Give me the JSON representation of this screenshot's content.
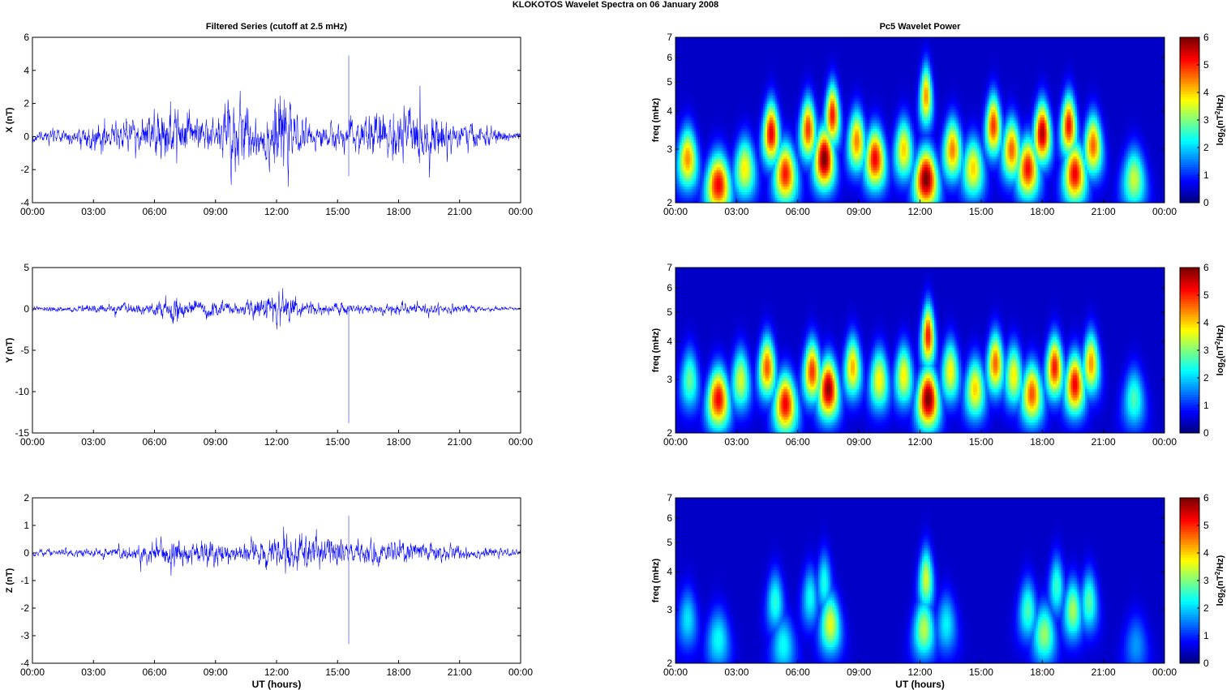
{
  "figure_title": "KLOKOTOS Wavelet Spectra on 06 January   2008",
  "left_column_title": "Filtered Series (cutoff at 2.5 mHz)",
  "right_column_title": "Pc5 Wavelet Power",
  "xlabel": "UT (hours)",
  "time_ticks": [
    "00:00",
    "03:00",
    "06:00",
    "09:00",
    "12:00",
    "15:00",
    "18:00",
    "21:00",
    "00:00"
  ],
  "freq_ylabel": "freq (mHz)",
  "freq_ticks": [
    "2",
    "3",
    "4",
    "5",
    "6",
    "7"
  ],
  "colorbar_label": "log2(nT2/Hz)",
  "colorbar_ticks": [
    "0",
    "1",
    "2",
    "3",
    "4",
    "5",
    "6"
  ],
  "chart_data": [
    {
      "type": "line",
      "component": "X",
      "ylabel": "X (nT)",
      "ylim": [
        -4,
        6
      ],
      "yticks": [
        -4,
        -2,
        0,
        2,
        4,
        6
      ],
      "x_range_hours": [
        0,
        24
      ],
      "line_color": "#0000ff",
      "envelope_nT_at_hour": [
        [
          0,
          0.2
        ],
        [
          2,
          0.25
        ],
        [
          3,
          0.5
        ],
        [
          5,
          0.6
        ],
        [
          7,
          1.0
        ],
        [
          8,
          0.8
        ],
        [
          9,
          0.5
        ],
        [
          9.7,
          1.6
        ],
        [
          11,
          0.7
        ],
        [
          12.3,
          1.5
        ],
        [
          13,
          0.6
        ],
        [
          14,
          0.4
        ],
        [
          15.5,
          0.5
        ],
        [
          16.5,
          0.8
        ],
        [
          19,
          1.0
        ],
        [
          21,
          0.5
        ],
        [
          24,
          0.15
        ]
      ],
      "spikes": [
        {
          "hour": 15.55,
          "max": 4.9,
          "min": -2.4
        }
      ]
    },
    {
      "type": "line",
      "component": "Y",
      "ylabel": "Y (nT)",
      "ylim": [
        -15,
        5
      ],
      "yticks": [
        -15,
        -10,
        -5,
        0,
        5
      ],
      "x_range_hours": [
        0,
        24
      ],
      "line_color": "#0000ff",
      "envelope_nT_at_hour": [
        [
          0,
          0.15
        ],
        [
          3,
          0.3
        ],
        [
          6,
          0.4
        ],
        [
          7,
          1.0
        ],
        [
          8,
          0.6
        ],
        [
          10,
          0.4
        ],
        [
          12.5,
          1.2
        ],
        [
          13.5,
          0.5
        ],
        [
          16,
          0.4
        ],
        [
          19,
          0.4
        ],
        [
          21,
          0.3
        ],
        [
          24,
          0.1
        ]
      ],
      "spikes": [
        {
          "hour": 15.55,
          "max": 0.3,
          "min": -13.8
        }
      ]
    },
    {
      "type": "line",
      "component": "Z",
      "ylabel": "Z (nT)",
      "ylim": [
        -4,
        2
      ],
      "yticks": [
        -4,
        -3,
        -2,
        -1,
        0,
        1,
        2
      ],
      "x_range_hours": [
        0,
        24
      ],
      "line_color": "#0000ff",
      "envelope_nT_at_hour": [
        [
          0,
          0.06
        ],
        [
          3,
          0.1
        ],
        [
          5,
          0.2
        ],
        [
          7,
          0.3
        ],
        [
          8.5,
          0.3
        ],
        [
          10,
          0.2
        ],
        [
          12.5,
          0.35
        ],
        [
          13.2,
          0.45
        ],
        [
          14.5,
          0.3
        ],
        [
          16,
          0.25
        ],
        [
          19,
          0.25
        ],
        [
          21,
          0.15
        ],
        [
          24,
          0.05
        ]
      ],
      "spikes": [
        {
          "hour": 15.55,
          "max": 1.35,
          "min": -3.3
        }
      ]
    },
    {
      "type": "heatmap",
      "component": "X",
      "ylabel": "freq (mHz)",
      "ylim_mHz": [
        2,
        7
      ],
      "y_scale": "log",
      "x_range_hours": [
        0,
        24
      ],
      "clim": [
        0,
        6
      ],
      "colormap": "jet",
      "blobs": [
        {
          "t": 0.6,
          "f": 2.8,
          "p": 4.2
        },
        {
          "t": 2.1,
          "f": 2.3,
          "p": 5.2
        },
        {
          "t": 3.4,
          "f": 2.6,
          "p": 3.6
        },
        {
          "t": 4.7,
          "f": 3.4,
          "p": 5.3
        },
        {
          "t": 5.4,
          "f": 2.5,
          "p": 5.0
        },
        {
          "t": 6.5,
          "f": 3.5,
          "p": 4.8
        },
        {
          "t": 7.3,
          "f": 2.8,
          "p": 6.0
        },
        {
          "t": 7.7,
          "f": 3.9,
          "p": 5.0
        },
        {
          "t": 8.9,
          "f": 3.2,
          "p": 4.3
        },
        {
          "t": 9.8,
          "f": 2.8,
          "p": 5.2
        },
        {
          "t": 11.2,
          "f": 3.0,
          "p": 3.8
        },
        {
          "t": 12.3,
          "f": 2.4,
          "p": 6.0
        },
        {
          "t": 12.3,
          "f": 4.5,
          "p": 4.2
        },
        {
          "t": 13.6,
          "f": 3.0,
          "p": 4.3
        },
        {
          "t": 14.6,
          "f": 2.6,
          "p": 3.8
        },
        {
          "t": 15.6,
          "f": 3.6,
          "p": 4.8
        },
        {
          "t": 16.5,
          "f": 3.0,
          "p": 4.5
        },
        {
          "t": 17.3,
          "f": 2.6,
          "p": 5.1
        },
        {
          "t": 18.0,
          "f": 3.4,
          "p": 5.6
        },
        {
          "t": 19.3,
          "f": 3.6,
          "p": 5.1
        },
        {
          "t": 19.6,
          "f": 2.5,
          "p": 5.2
        },
        {
          "t": 20.5,
          "f": 3.1,
          "p": 4.5
        },
        {
          "t": 22.5,
          "f": 2.4,
          "p": 3.2
        }
      ]
    },
    {
      "type": "heatmap",
      "component": "Y",
      "ylabel": "freq (mHz)",
      "ylim_mHz": [
        2,
        7
      ],
      "y_scale": "log",
      "x_range_hours": [
        0,
        24
      ],
      "clim": [
        0,
        6
      ],
      "colormap": "jet",
      "blobs": [
        {
          "t": 0.7,
          "f": 3.0,
          "p": 2.6
        },
        {
          "t": 2.1,
          "f": 2.6,
          "p": 5.2
        },
        {
          "t": 3.2,
          "f": 3.0,
          "p": 3.3
        },
        {
          "t": 4.5,
          "f": 3.3,
          "p": 4.6
        },
        {
          "t": 5.4,
          "f": 2.5,
          "p": 5.2
        },
        {
          "t": 6.7,
          "f": 3.2,
          "p": 4.8
        },
        {
          "t": 7.5,
          "f": 2.8,
          "p": 5.8
        },
        {
          "t": 8.7,
          "f": 3.3,
          "p": 4.0
        },
        {
          "t": 10.0,
          "f": 3.0,
          "p": 3.6
        },
        {
          "t": 11.2,
          "f": 3.1,
          "p": 3.6
        },
        {
          "t": 12.4,
          "f": 2.6,
          "p": 6.0
        },
        {
          "t": 12.4,
          "f": 4.2,
          "p": 5.0
        },
        {
          "t": 13.5,
          "f": 3.2,
          "p": 3.6
        },
        {
          "t": 14.7,
          "f": 2.8,
          "p": 3.8
        },
        {
          "t": 15.7,
          "f": 3.4,
          "p": 4.5
        },
        {
          "t": 16.6,
          "f": 3.1,
          "p": 3.6
        },
        {
          "t": 17.5,
          "f": 2.7,
          "p": 4.6
        },
        {
          "t": 18.6,
          "f": 3.3,
          "p": 5.0
        },
        {
          "t": 19.6,
          "f": 2.9,
          "p": 5.2
        },
        {
          "t": 20.4,
          "f": 3.4,
          "p": 4.2
        },
        {
          "t": 22.5,
          "f": 2.6,
          "p": 2.4
        }
      ]
    },
    {
      "type": "heatmap",
      "component": "Z",
      "ylabel": "freq (mHz)",
      "ylim_mHz": [
        2,
        7
      ],
      "y_scale": "log",
      "x_range_hours": [
        0,
        24
      ],
      "clim": [
        0,
        6
      ],
      "colormap": "jet",
      "blobs": [
        {
          "t": 0.6,
          "f": 2.8,
          "p": 1.8
        },
        {
          "t": 2.1,
          "f": 2.4,
          "p": 2.0
        },
        {
          "t": 4.9,
          "f": 3.2,
          "p": 2.2
        },
        {
          "t": 5.3,
          "f": 2.3,
          "p": 2.0
        },
        {
          "t": 6.6,
          "f": 3.3,
          "p": 2.0
        },
        {
          "t": 7.6,
          "f": 2.7,
          "p": 3.4
        },
        {
          "t": 7.3,
          "f": 3.7,
          "p": 2.1
        },
        {
          "t": 12.3,
          "f": 3.8,
          "p": 3.3
        },
        {
          "t": 12.2,
          "f": 2.6,
          "p": 3.1
        },
        {
          "t": 13.3,
          "f": 2.7,
          "p": 1.9
        },
        {
          "t": 17.3,
          "f": 3.0,
          "p": 2.4
        },
        {
          "t": 18.1,
          "f": 2.5,
          "p": 2.9
        },
        {
          "t": 18.7,
          "f": 3.6,
          "p": 2.3
        },
        {
          "t": 19.5,
          "f": 3.0,
          "p": 3.0
        },
        {
          "t": 20.3,
          "f": 3.2,
          "p": 2.5
        },
        {
          "t": 22.6,
          "f": 2.3,
          "p": 1.3
        }
      ]
    }
  ]
}
